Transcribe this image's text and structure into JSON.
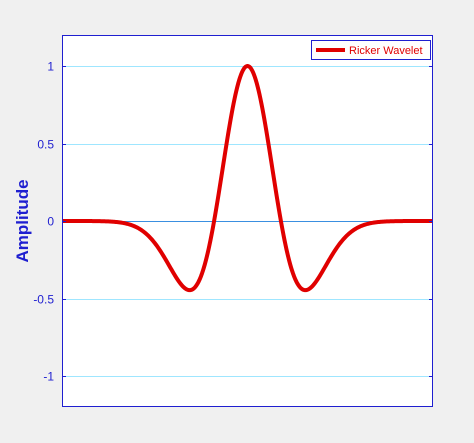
{
  "chart_data": {
    "type": "line",
    "title": "",
    "xlabel": "",
    "ylabel": "Amplitude",
    "xlim": [
      -2.5,
      2.5
    ],
    "ylim": [
      -1.2,
      1.2
    ],
    "yticks": [
      -1,
      -0.5,
      0,
      0.5,
      1
    ],
    "ytick_labels": [
      "-1",
      "-0.5",
      "0",
      "0.5",
      "1"
    ],
    "grid": true,
    "grid_axis": "y",
    "legend": "top-right",
    "colors": {
      "series": "#e00000",
      "axes": "#1f1fd0",
      "grid": "#9fe6ff",
      "background": "#ffffff",
      "figure": "#f0f0f0"
    },
    "series": [
      {
        "name": "Ricker Wavelet",
        "function": "(1 - 2*(pi*f*t)^2) * exp(-(pi*f*t)^2)",
        "f": 0.5,
        "x_range": [
          -2.5,
          2.5
        ]
      }
    ]
  }
}
